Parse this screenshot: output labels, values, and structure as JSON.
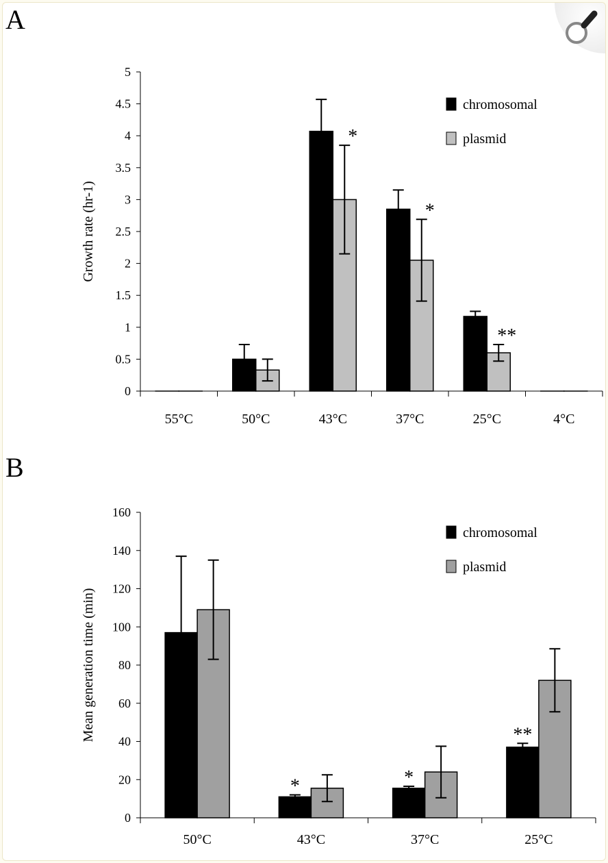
{
  "chart_data": [
    {
      "panel": "A",
      "type": "bar",
      "ylabel": "Growth rate (hr-1)",
      "ylim": [
        0,
        5
      ],
      "yticks": [
        0,
        0.5,
        1,
        1.5,
        2,
        2.5,
        3,
        3.5,
        4,
        4.5,
        5
      ],
      "categories": [
        "55°C",
        "50°C",
        "43°C",
        "37°C",
        "25°C",
        "4°C"
      ],
      "series": [
        {
          "name": "chromosomal",
          "color": "#000000",
          "values": [
            0,
            0.5,
            4.07,
            2.85,
            1.17,
            0
          ],
          "err_upper": [
            0,
            0.23,
            0.5,
            0.3,
            0.08,
            0
          ]
        },
        {
          "name": "plasmid",
          "color": "#c0c0c0",
          "values": [
            0,
            0.33,
            3.0,
            2.05,
            0.6,
            0
          ],
          "err": [
            0,
            0.17,
            0.85,
            0.64,
            0.13,
            0
          ]
        }
      ],
      "annotations": [
        {
          "category": "43°C",
          "series": "plasmid",
          "text": "*"
        },
        {
          "category": "37°C",
          "series": "plasmid",
          "text": "*"
        },
        {
          "category": "25°C",
          "series": "plasmid",
          "text": "**"
        }
      ],
      "legend": "top-right"
    },
    {
      "panel": "B",
      "type": "bar",
      "ylabel": "Mean generation time (min)",
      "ylim": [
        0,
        160
      ],
      "yticks": [
        0,
        20,
        40,
        60,
        80,
        100,
        120,
        140,
        160
      ],
      "categories": [
        "50°C",
        "43°C",
        "37°C",
        "25°C"
      ],
      "series": [
        {
          "name": "chromosomal",
          "color": "#000000",
          "values": [
            97,
            11,
            15.5,
            37
          ],
          "err_upper": [
            40,
            1,
            1,
            2
          ]
        },
        {
          "name": "plasmid",
          "color": "#a0a0a0",
          "values": [
            109,
            15.5,
            24,
            72
          ],
          "err": [
            26,
            7,
            13.5,
            16.5
          ]
        }
      ],
      "annotations": [
        {
          "category": "43°C",
          "series": "chromosomal",
          "text": "*"
        },
        {
          "category": "37°C",
          "series": "chromosomal",
          "text": "*"
        },
        {
          "category": "25°C",
          "series": "chromosomal",
          "text": "**"
        }
      ],
      "legend": "top-right"
    }
  ]
}
